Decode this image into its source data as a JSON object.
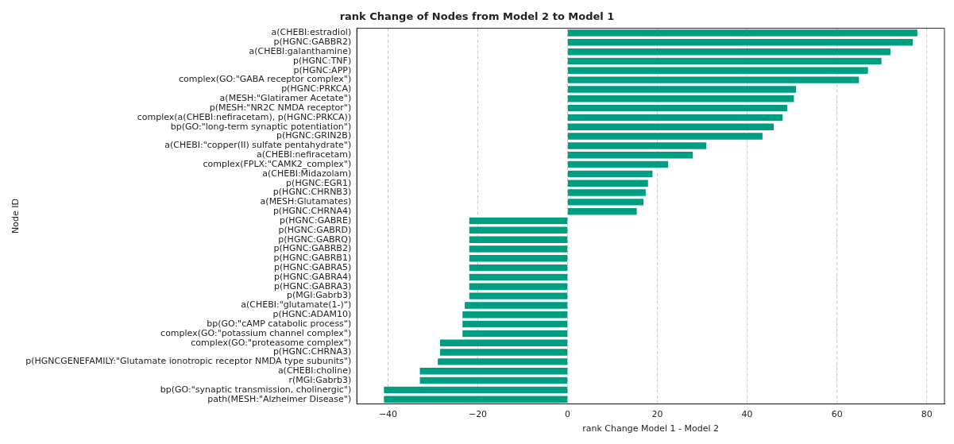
{
  "chart_data": {
    "type": "bar",
    "orientation": "horizontal",
    "title": "rank Change of Nodes from Model 2 to Model 1",
    "xlabel": "rank Change Model 1 - Model 2",
    "ylabel": "Node ID",
    "categories": [
      "a(CHEBI:estradiol)",
      "p(HGNC:GABBR2)",
      "a(CHEBI:galanthamine)",
      "p(HGNC:TNF)",
      "p(HGNC:APP)",
      "complex(GO:\"GABA receptor complex\")",
      "p(HGNC:PRKCA)",
      "a(MESH:\"Glatiramer Acetate\")",
      "p(MESH:\"NR2C NMDA receptor\")",
      "complex(a(CHEBI:nefiracetam), p(HGNC:PRKCA))",
      "bp(GO:\"long-term synaptic potentiation\")",
      "p(HGNC:GRIN2B)",
      "a(CHEBI:\"copper(II) sulfate pentahydrate\")",
      "a(CHEBI:nefiracetam)",
      "complex(FPLX:\"CAMK2_complex\")",
      "a(CHEBI:Midazolam)",
      "p(HGNC:EGR1)",
      "p(HGNC:CHRNB3)",
      "a(MESH:Glutamates)",
      "p(HGNC:CHRNA4)",
      "p(HGNC:GABRE)",
      "p(HGNC:GABRD)",
      "p(HGNC:GABRQ)",
      "p(HGNC:GABRB2)",
      "p(HGNC:GABRB1)",
      "p(HGNC:GABRA5)",
      "p(HGNC:GABRA4)",
      "p(HGNC:GABRA3)",
      "p(MGI:Gabrb3)",
      "a(CHEBI:\"glutamate(1-)\")",
      "p(HGNC:ADAM10)",
      "bp(GO:\"cAMP catabolic process\")",
      "complex(GO:\"potassium channel complex\")",
      "complex(GO:\"proteasome complex\")",
      "p(HGNC:CHRNA3)",
      "p(HGNCGENEFAMILY:\"Glutamate ionotropic receptor NMDA type subunits\")",
      "a(CHEBI:choline)",
      "r(MGI:Gabrb3)",
      "bp(GO:\"synaptic transmission, cholinergic\")",
      "path(MESH:\"Alzheimer Disease\")"
    ],
    "values": [
      78,
      77,
      72,
      70,
      67,
      65,
      51,
      50.5,
      49,
      48,
      46,
      43.5,
      31,
      28,
      22.5,
      19,
      18,
      17.5,
      17,
      15.5,
      -22,
      -22,
      -22,
      -22,
      -22,
      -22,
      -22,
      -22,
      -22,
      -23,
      -23.5,
      -23.5,
      -23.5,
      -28.5,
      -28.5,
      -29,
      -33,
      -33,
      -41,
      -41
    ],
    "color": "#009e81",
    "xlim": [
      -46.95,
      83.95
    ],
    "xticks": [
      -40,
      -20,
      0,
      20,
      40,
      60,
      80
    ],
    "grid": "x"
  }
}
